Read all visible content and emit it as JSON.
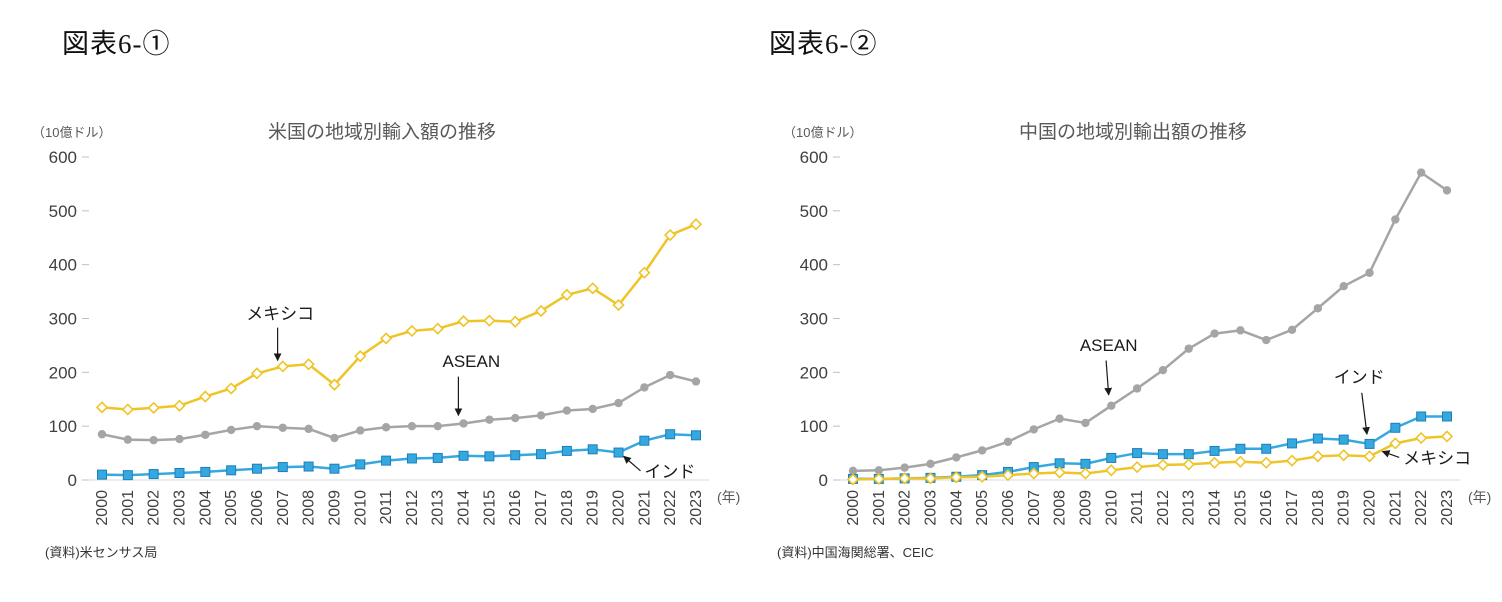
{
  "figures": [
    {
      "label": "図表6-①",
      "source": "(資料)米センサス局"
    },
    {
      "label": "図表6-②",
      "source": "(資料)中国海関総署、CEIC"
    }
  ],
  "colors": {
    "mexico": "#EFC426",
    "asean": "#A5A5A5",
    "india": "#35A8E0",
    "india_edge": "#1E7FB8",
    "axis_text": "#404040",
    "axis_line": "#D9D9D9",
    "tick": "#BFBFBF",
    "annotation": "#1A1A1A"
  },
  "chart_data": [
    {
      "type": "line",
      "title": "米国の地域別輸入額の推移",
      "unit_label": "（10億ドル）",
      "x_axis_suffix": "(年)",
      "categories": [
        "2000",
        "2001",
        "2002",
        "2003",
        "2004",
        "2005",
        "2006",
        "2007",
        "2008",
        "2009",
        "2010",
        "2011",
        "2012",
        "2013",
        "2014",
        "2015",
        "2016",
        "2017",
        "2018",
        "2019",
        "2020",
        "2021",
        "2022",
        "2023"
      ],
      "ylim": [
        0,
        600
      ],
      "ytick_step": 100,
      "grid": false,
      "legend": "inline-annotations",
      "series": [
        {
          "key": "mexico",
          "name": "メキシコ",
          "marker": "diamond",
          "values": [
            135,
            131,
            134,
            138,
            155,
            170,
            198,
            211,
            215,
            177,
            230,
            263,
            277,
            281,
            295,
            296,
            294,
            314,
            344,
            356,
            325,
            385,
            455,
            475
          ]
        },
        {
          "key": "asean",
          "name": "ASEAN",
          "marker": "circle",
          "values": [
            85,
            75,
            74,
            76,
            84,
            93,
            100,
            97,
            95,
            78,
            92,
            98,
            100,
            100,
            105,
            112,
            115,
            120,
            129,
            132,
            143,
            172,
            195,
            183
          ]
        },
        {
          "key": "india",
          "name": "インド",
          "marker": "square",
          "values": [
            10,
            9,
            11,
            13,
            15,
            18,
            21,
            24,
            25,
            21,
            29,
            36,
            40,
            41,
            45,
            44,
            46,
            48,
            54,
            57,
            51,
            73,
            85,
            83
          ]
        }
      ],
      "annotations": [
        {
          "text": "メキシコ",
          "anchor": "middle",
          "text_x": 2006.9,
          "text_y": 298,
          "from_x": 2006.8,
          "from_y": 283,
          "to_x": 2006.8,
          "to_y": 222
        },
        {
          "text": "ASEAN",
          "anchor": "middle",
          "text_x": 2014.3,
          "text_y": 210,
          "from_x": 2013.8,
          "from_y": 192,
          "to_x": 2013.8,
          "to_y": 120
        },
        {
          "text": "インド",
          "anchor": "start",
          "text_x": 2021.0,
          "text_y": 5,
          "from_x": 2020.85,
          "from_y": 17,
          "to_x": 2020.2,
          "to_y": 44
        }
      ]
    },
    {
      "type": "line",
      "title": "中国の地域別輸出額の推移",
      "unit_label": "（10億ドル）",
      "x_axis_suffix": "(年)",
      "categories": [
        "2000",
        "2001",
        "2002",
        "2003",
        "2004",
        "2005",
        "2006",
        "2007",
        "2008",
        "2009",
        "2010",
        "2011",
        "2012",
        "2013",
        "2014",
        "2015",
        "2016",
        "2017",
        "2018",
        "2019",
        "2020",
        "2021",
        "2022",
        "2023"
      ],
      "ylim": [
        0,
        600
      ],
      "ytick_step": 100,
      "grid": false,
      "legend": "inline-annotations",
      "series": [
        {
          "key": "asean",
          "name": "ASEAN",
          "marker": "circle",
          "values": [
            17,
            18,
            23,
            30,
            42,
            55,
            71,
            94,
            114,
            106,
            138,
            170,
            204,
            244,
            272,
            278,
            260,
            279,
            319,
            360,
            385,
            484,
            571,
            538
          ]
        },
        {
          "key": "india",
          "name": "インド",
          "marker": "square",
          "values": [
            2,
            2,
            3,
            4,
            6,
            9,
            15,
            24,
            31,
            30,
            41,
            50,
            48,
            48,
            54,
            58,
            58,
            68,
            77,
            75,
            67,
            97,
            118,
            118
          ]
        },
        {
          "key": "mexico",
          "name": "メキシコ",
          "marker": "diamond",
          "values": [
            1,
            2,
            3,
            3,
            5,
            6,
            9,
            12,
            14,
            12,
            18,
            24,
            28,
            29,
            32,
            34,
            32,
            36,
            44,
            46,
            44,
            68,
            78,
            81
          ]
        }
      ],
      "annotations": [
        {
          "text": "ASEAN",
          "anchor": "middle",
          "text_x": 2009.9,
          "text_y": 240,
          "from_x": 2009.8,
          "from_y": 222,
          "to_x": 2009.9,
          "to_y": 158
        },
        {
          "text": "インド",
          "anchor": "middle",
          "text_x": 2019.6,
          "text_y": 180,
          "from_x": 2019.7,
          "from_y": 162,
          "to_x": 2019.9,
          "to_y": 85
        },
        {
          "text": "メキシコ",
          "anchor": "start",
          "text_x": 2021.3,
          "text_y": 30,
          "from_x": 2021.15,
          "from_y": 42,
          "to_x": 2020.5,
          "to_y": 53
        }
      ]
    }
  ]
}
